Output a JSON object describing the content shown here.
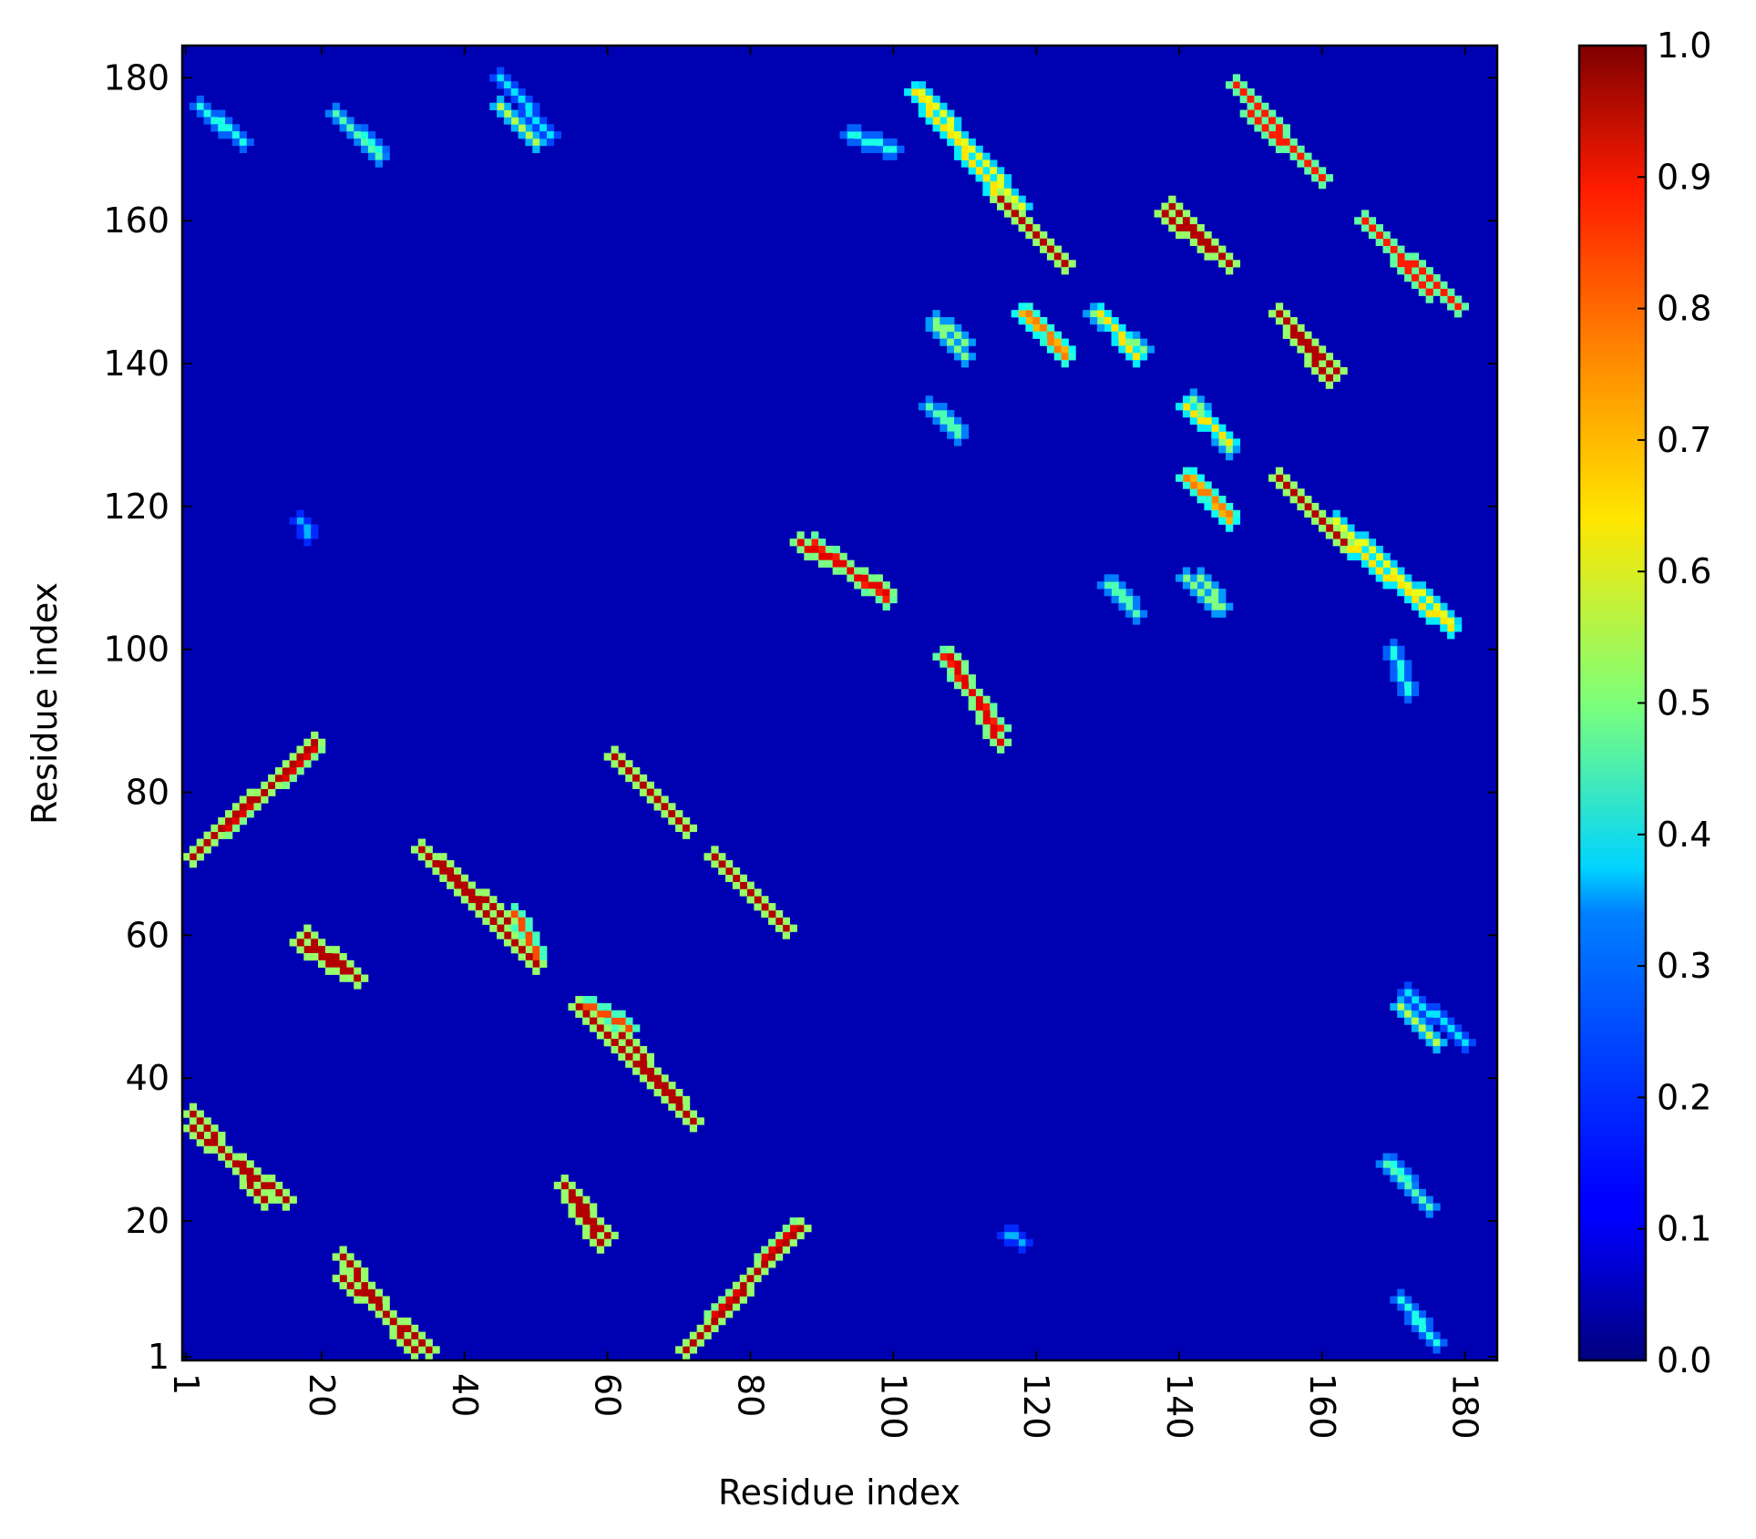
{
  "chart_data": {
    "type": "heatmap",
    "title": "",
    "xlabel": "Residue index",
    "ylabel": "Residue index",
    "xlim": [
      1,
      184
    ],
    "ylim": [
      1,
      184
    ],
    "x_ticks": [
      {
        "value": 1,
        "label": "1"
      },
      {
        "value": 20,
        "label": "20"
      },
      {
        "value": 40,
        "label": "40"
      },
      {
        "value": 60,
        "label": "60"
      },
      {
        "value": 80,
        "label": "80"
      },
      {
        "value": 100,
        "label": "100"
      },
      {
        "value": 120,
        "label": "120"
      },
      {
        "value": 140,
        "label": "140"
      },
      {
        "value": 160,
        "label": "160"
      },
      {
        "value": 180,
        "label": "180"
      }
    ],
    "y_ticks": [
      {
        "value": 1,
        "label": "1"
      },
      {
        "value": 20,
        "label": "20"
      },
      {
        "value": 40,
        "label": "40"
      },
      {
        "value": 60,
        "label": "60"
      },
      {
        "value": 80,
        "label": "80"
      },
      {
        "value": 100,
        "label": "100"
      },
      {
        "value": 120,
        "label": "120"
      },
      {
        "value": 140,
        "label": "140"
      },
      {
        "value": 160,
        "label": "160"
      },
      {
        "value": 180,
        "label": "180"
      }
    ],
    "x_tick_rotation": "vertical",
    "colormap": "jet",
    "colorbar": {
      "range": [
        0.0,
        1.0
      ],
      "ticks": [
        {
          "value": 0.0,
          "label": "0.0"
        },
        {
          "value": 0.1,
          "label": "0.1"
        },
        {
          "value": 0.2,
          "label": "0.2"
        },
        {
          "value": 0.3,
          "label": "0.3"
        },
        {
          "value": 0.4,
          "label": "0.4"
        },
        {
          "value": 0.5,
          "label": "0.5"
        },
        {
          "value": 0.6,
          "label": "0.6"
        },
        {
          "value": 0.7,
          "label": "0.7"
        },
        {
          "value": 0.8,
          "label": "0.8"
        },
        {
          "value": 0.9,
          "label": "0.9"
        },
        {
          "value": 1.0,
          "label": "1.0"
        }
      ]
    },
    "background_value": 0.05,
    "contact_bands": [
      {
        "from": [
          2,
          35
        ],
        "to": [
          12,
          23
        ],
        "value": 0.95
      },
      {
        "from": [
          23,
          15
        ],
        "to": [
          33,
          2
        ],
        "value": 0.95
      },
      {
        "from": [
          2,
          71
        ],
        "to": [
          19,
          87
        ],
        "value": 0.95
      },
      {
        "from": [
          18,
          60
        ],
        "to": [
          25,
          54
        ],
        "value": 0.95
      },
      {
        "from": [
          34,
          72
        ],
        "to": [
          46,
          62
        ],
        "value": 0.95
      },
      {
        "from": [
          47,
          63
        ],
        "to": [
          50,
          57
        ],
        "value": 0.8
      },
      {
        "from": [
          56,
          50
        ],
        "to": [
          71,
          35
        ],
        "value": 0.95
      },
      {
        "from": [
          55,
          23
        ],
        "to": [
          59,
          17
        ],
        "value": 0.95
      },
      {
        "from": [
          71,
          2
        ],
        "to": [
          86,
          19
        ],
        "value": 0.9
      },
      {
        "from": [
          61,
          85
        ],
        "to": [
          71,
          75
        ],
        "value": 0.95
      },
      {
        "from": [
          76,
          70
        ],
        "to": [
          85,
          61
        ],
        "value": 0.95
      },
      {
        "from": [
          89,
          115
        ],
        "to": [
          99,
          107
        ],
        "value": 0.85
      },
      {
        "from": [
          108,
          99
        ],
        "to": [
          115,
          87
        ],
        "value": 0.9
      },
      {
        "from": [
          104,
          178
        ],
        "to": [
          118,
          162
        ],
        "value": 0.6
      },
      {
        "from": [
          115,
          163
        ],
        "to": [
          124,
          154
        ],
        "value": 0.95
      },
      {
        "from": [
          139,
          162
        ],
        "to": [
          147,
          154
        ],
        "value": 0.95
      },
      {
        "from": [
          148,
          179
        ],
        "to": [
          160,
          166
        ],
        "value": 0.85
      },
      {
        "from": [
          166,
          160
        ],
        "to": [
          175,
          150
        ],
        "value": 0.85
      },
      {
        "from": [
          154,
          147
        ],
        "to": [
          161,
          138
        ],
        "value": 0.95
      },
      {
        "from": [
          154,
          124
        ],
        "to": [
          162,
          116
        ],
        "value": 0.95
      },
      {
        "from": [
          162,
          116
        ],
        "to": [
          178,
          103
        ],
        "value": 0.65
      },
      {
        "from": [
          119,
          147
        ],
        "to": [
          124,
          141
        ],
        "value": 0.75
      },
      {
        "from": [
          129,
          147
        ],
        "to": [
          134,
          141
        ],
        "value": 0.65
      },
      {
        "from": [
          142,
          124
        ],
        "to": [
          147,
          118
        ],
        "value": 0.7
      },
      {
        "from": [
          142,
          135
        ],
        "to": [
          147,
          128
        ],
        "value": 0.5
      },
      {
        "from": [
          171,
          50
        ],
        "to": [
          176,
          45
        ],
        "value": 0.55
      },
      {
        "from": [
          3,
          176
        ],
        "to": [
          8,
          172
        ],
        "value": 0.4
      },
      {
        "from": [
          22,
          175
        ],
        "to": [
          28,
          169
        ],
        "value": 0.45
      },
      {
        "from": [
          45,
          180
        ],
        "to": [
          52,
          172
        ],
        "value": 0.35
      },
      {
        "from": [
          106,
          145
        ],
        "to": [
          110,
          141
        ],
        "value": 0.5
      },
      {
        "from": [
          107,
          133
        ],
        "to": [
          109,
          131
        ],
        "value": 0.45
      },
      {
        "from": [
          130,
          109
        ],
        "to": [
          134,
          105
        ],
        "value": 0.45
      },
      {
        "from": [
          143,
          110
        ],
        "to": [
          146,
          106
        ],
        "value": 0.5
      },
      {
        "from": [
          170,
          28
        ],
        "to": [
          174,
          23
        ],
        "value": 0.4
      },
      {
        "from": [
          171,
          9
        ],
        "to": [
          174,
          5
        ],
        "value": 0.4
      },
      {
        "from": [
          17,
          118
        ],
        "to": [
          18,
          116
        ],
        "value": 0.3
      },
      {
        "from": [
          170,
          100
        ],
        "to": [
          172,
          94
        ],
        "value": 0.4
      }
    ]
  }
}
